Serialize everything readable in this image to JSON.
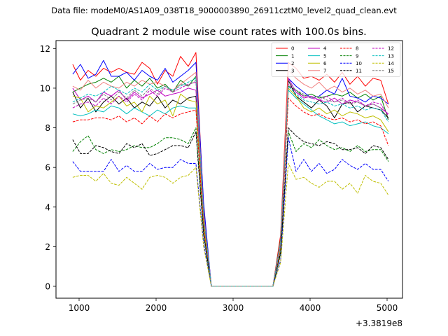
{
  "figure": {
    "suptitle": "Data file: modeM0/AS1A09_038T18_9000003890_26911cztM0_level2_quad_clean.evt"
  },
  "chart_data": {
    "type": "line",
    "title": "Quadrant 2 module wise count rates with 100.0s bins.",
    "xlabel": "",
    "ylabel": "",
    "x_offset_label": "+3.3819e8",
    "xlim": [
      700,
      5200
    ],
    "ylim": [
      -0.6,
      12.4
    ],
    "xticks": [
      1000,
      2000,
      3000,
      4000,
      5000
    ],
    "xtick_labels": [
      "1000",
      "2000",
      "3000",
      "4000",
      "5000"
    ],
    "yticks": [
      0,
      2,
      4,
      6,
      8,
      10,
      12
    ],
    "ytick_labels": [
      "0",
      "2",
      "4",
      "6",
      "8",
      "10",
      "12"
    ],
    "grid": false,
    "legend_position": "upper-right",
    "legend_columns": 4,
    "x": [
      917,
      1017,
      1117,
      1217,
      1317,
      1417,
      1517,
      1617,
      1717,
      1817,
      1917,
      2017,
      2117,
      2217,
      2317,
      2417,
      2517,
      2617,
      2717,
      2817,
      2917,
      3017,
      3117,
      3217,
      3317,
      3417,
      3517,
      3617,
      3717,
      3817,
      3917,
      4017,
      4117,
      4217,
      4317,
      4417,
      4517,
      4617,
      4717,
      4817,
      4917,
      5017
    ],
    "series": [
      {
        "name": "0",
        "color": "#ff0000",
        "dash": "solid",
        "values": [
          11.2,
          10.4,
          10.9,
          10.6,
          11.0,
          10.8,
          11.0,
          10.8,
          10.7,
          11.3,
          11.0,
          10.2,
          10.9,
          10.6,
          11.6,
          11.1,
          11.8,
          4.0,
          0,
          0,
          0,
          0,
          0,
          0,
          0,
          0,
          0,
          2.6,
          11.3,
          11.0,
          10.5,
          10.6,
          10.4,
          10.7,
          10.3,
          10.8,
          10.2,
          10.6,
          10.1,
          10.5,
          10.4,
          9.2
        ]
      },
      {
        "name": "1",
        "color": "#008000",
        "dash": "solid",
        "values": [
          9.8,
          10.0,
          10.2,
          10.3,
          10.5,
          10.3,
          10.6,
          10.0,
          10.4,
          10.1,
          10.5,
          10.0,
          10.2,
          9.8,
          10.4,
          10.1,
          10.6,
          3.6,
          0,
          0,
          0,
          0,
          0,
          0,
          0,
          0,
          0,
          2.4,
          10.1,
          9.9,
          9.6,
          9.7,
          9.5,
          9.6,
          9.7,
          9.6,
          9.8,
          9.5,
          9.7,
          9.4,
          9.6,
          8.4
        ]
      },
      {
        "name": "2",
        "color": "#0000ff",
        "dash": "solid",
        "values": [
          10.7,
          11.2,
          10.5,
          10.7,
          11.4,
          10.6,
          10.6,
          10.8,
          10.4,
          10.9,
          10.6,
          10.4,
          11.0,
          10.3,
          10.6,
          10.9,
          11.3,
          4.2,
          0,
          0,
          0,
          0,
          0,
          0,
          0,
          0,
          0,
          2.3,
          10.5,
          10.1,
          9.8,
          9.5,
          9.6,
          9.9,
          9.7,
          10.5,
          9.6,
          9.5,
          9.3,
          9.6,
          9.5,
          9.2
        ]
      },
      {
        "name": "3",
        "color": "#000000",
        "dash": "solid",
        "values": [
          9.8,
          9.0,
          9.5,
          8.8,
          9.3,
          9.6,
          9.2,
          9.5,
          9.0,
          9.3,
          9.1,
          9.6,
          9.0,
          9.4,
          9.2,
          9.5,
          9.6,
          3.2,
          0,
          0,
          0,
          0,
          0,
          0,
          0,
          0,
          0,
          2.0,
          10.4,
          9.6,
          9.3,
          9.0,
          9.4,
          9.1,
          8.5,
          9.2,
          9.3,
          8.8,
          9.1,
          9.0,
          8.9,
          8.5
        ]
      },
      {
        "name": "4",
        "color": "#bf00bf",
        "dash": "solid",
        "values": [
          10.0,
          9.4,
          9.6,
          9.3,
          9.8,
          9.6,
          9.9,
          9.4,
          9.8,
          9.5,
          9.7,
          9.9,
          9.6,
          9.7,
          9.8,
          10.0,
          9.9,
          3.4,
          0,
          0,
          0,
          0,
          0,
          0,
          0,
          0,
          0,
          2.2,
          10.5,
          9.8,
          9.5,
          9.6,
          9.4,
          9.3,
          9.5,
          9.2,
          9.4,
          9.3,
          9.1,
          9.2,
          9.0,
          8.7
        ]
      },
      {
        "name": "5",
        "color": "#00bfbf",
        "dash": "solid",
        "values": [
          8.7,
          8.6,
          8.7,
          8.9,
          8.8,
          9.1,
          9.0,
          8.7,
          9.0,
          8.8,
          8.6,
          8.9,
          8.7,
          9.0,
          9.1,
          9.0,
          9.0,
          3.0,
          0,
          0,
          0,
          0,
          0,
          0,
          0,
          0,
          0,
          1.9,
          9.9,
          9.5,
          9.2,
          8.9,
          8.6,
          8.4,
          8.2,
          8.3,
          8.1,
          8.2,
          8.3,
          8.1,
          8.0,
          7.7
        ]
      },
      {
        "name": "6",
        "color": "#bfbf00",
        "dash": "solid",
        "values": [
          9.6,
          9.5,
          8.8,
          9.1,
          9.0,
          9.3,
          9.6,
          9.1,
          9.3,
          8.8,
          9.6,
          9.2,
          9.4,
          8.6,
          9.7,
          9.4,
          9.3,
          3.1,
          0,
          0,
          0,
          0,
          0,
          0,
          0,
          0,
          0,
          2.0,
          10.0,
          9.6,
          9.0,
          8.8,
          9.0,
          8.7,
          8.9,
          8.6,
          8.8,
          8.7,
          8.5,
          8.6,
          8.4,
          7.8
        ]
      },
      {
        "name": "7",
        "color": "#f08080",
        "dash": "solid",
        "values": [
          10.1,
          9.9,
          10.4,
          10.0,
          10.3,
          10.1,
          10.0,
          10.3,
          10.1,
          10.4,
          10.2,
          10.3,
          10.1,
          9.9,
          10.2,
          10.5,
          10.8,
          3.7,
          0,
          0,
          0,
          0,
          0,
          0,
          0,
          0,
          0,
          2.3,
          10.9,
          10.5,
          10.2,
          10.0,
          10.3,
          9.9,
          10.1,
          9.8,
          10.0,
          9.7,
          9.9,
          9.6,
          9.7,
          9.0
        ]
      },
      {
        "name": "8",
        "color": "#ff0000",
        "dash": "dashed",
        "values": [
          8.3,
          8.4,
          8.4,
          8.5,
          8.5,
          8.4,
          8.6,
          8.3,
          8.5,
          8.2,
          8.6,
          8.3,
          8.7,
          8.5,
          8.7,
          8.8,
          8.9,
          2.9,
          0,
          0,
          0,
          0,
          0,
          0,
          0,
          0,
          0,
          1.8,
          9.5,
          9.1,
          8.8,
          8.6,
          8.7,
          8.5,
          8.4,
          8.5,
          8.3,
          8.4,
          8.2,
          8.3,
          8.1,
          7.1
        ]
      },
      {
        "name": "9",
        "color": "#008000",
        "dash": "dashed",
        "values": [
          6.8,
          7.3,
          7.6,
          6.9,
          6.7,
          6.9,
          6.8,
          6.9,
          7.1,
          7.0,
          7.0,
          7.2,
          7.5,
          7.5,
          7.4,
          7.2,
          8.0,
          2.7,
          0,
          0,
          0,
          0,
          0,
          0,
          0,
          0,
          0,
          1.6,
          7.8,
          6.8,
          7.2,
          7.0,
          7.4,
          7.1,
          6.9,
          7.0,
          6.8,
          7.1,
          6.8,
          6.9,
          6.9,
          6.3
        ]
      },
      {
        "name": "10",
        "color": "#0000ff",
        "dash": "dashed",
        "values": [
          6.3,
          5.8,
          5.8,
          5.8,
          5.8,
          6.4,
          5.8,
          6.1,
          5.8,
          5.8,
          6.2,
          5.9,
          6.0,
          6.0,
          6.4,
          6.2,
          6.2,
          2.2,
          0,
          0,
          0,
          0,
          0,
          0,
          0,
          0,
          0,
          1.3,
          7.5,
          5.8,
          6.4,
          5.8,
          6.2,
          5.7,
          5.9,
          6.4,
          6.1,
          5.9,
          6.2,
          5.9,
          5.9,
          5.3
        ]
      },
      {
        "name": "11",
        "color": "#000000",
        "dash": "dashed",
        "values": [
          7.4,
          6.7,
          6.7,
          7.1,
          7.0,
          6.8,
          6.7,
          7.2,
          7.0,
          7.2,
          6.6,
          6.7,
          6.9,
          7.1,
          7.1,
          7.0,
          7.8,
          2.6,
          0,
          0,
          0,
          0,
          0,
          0,
          0,
          0,
          0,
          1.7,
          8.0,
          7.6,
          7.3,
          7.2,
          7.1,
          7.3,
          7.2,
          6.9,
          6.9,
          7.0,
          6.7,
          7.1,
          7.0,
          6.4
        ]
      },
      {
        "name": "12",
        "color": "#bf00bf",
        "dash": "dashed",
        "values": [
          9.0,
          9.2,
          9.3,
          9.1,
          9.5,
          9.2,
          9.6,
          9.3,
          9.7,
          9.4,
          9.9,
          9.6,
          10.0,
          9.8,
          10.0,
          10.2,
          10.3,
          3.5,
          0,
          0,
          0,
          0,
          0,
          0,
          0,
          0,
          0,
          2.1,
          10.2,
          9.8,
          9.6,
          9.5,
          9.4,
          9.6,
          9.3,
          9.5,
          9.2,
          9.4,
          9.1,
          9.3,
          9.2,
          8.6
        ]
      },
      {
        "name": "13",
        "color": "#00bfbf",
        "dash": "dashed",
        "values": [
          9.3,
          9.5,
          9.7,
          9.6,
          9.8,
          10.1,
          9.9,
          9.7,
          10.0,
          9.8,
          10.2,
          9.9,
          10.1,
          9.9,
          10.1,
          10.3,
          10.5,
          3.6,
          0,
          0,
          0,
          0,
          0,
          0,
          0,
          0,
          0,
          2.2,
          10.1,
          9.7,
          9.4,
          9.3,
          9.2,
          9.3,
          9.1,
          9.2,
          9.0,
          9.1,
          8.9,
          9.0,
          8.9,
          8.3
        ]
      },
      {
        "name": "14",
        "color": "#bfbf00",
        "dash": "dashed",
        "values": [
          5.5,
          5.6,
          5.6,
          5.3,
          5.7,
          5.2,
          5.1,
          5.5,
          5.2,
          4.9,
          5.5,
          5.6,
          5.5,
          5.2,
          5.5,
          5.6,
          6.0,
          2.0,
          0,
          0,
          0,
          0,
          0,
          0,
          0,
          0,
          0,
          1.2,
          6.2,
          5.4,
          5.5,
          5.2,
          5.0,
          5.3,
          5.3,
          4.9,
          5.2,
          4.7,
          5.6,
          5.3,
          5.2,
          4.6
        ]
      },
      {
        "name": "15",
        "color": "#808080",
        "dash": "dashed",
        "values": [
          9.2,
          9.4,
          9.5,
          9.3,
          9.7,
          9.4,
          9.8,
          9.5,
          9.9,
          9.6,
          10.0,
          9.7,
          10.1,
          9.8,
          10.2,
          10.1,
          10.4,
          3.5,
          0,
          0,
          0,
          0,
          0,
          0,
          0,
          0,
          0,
          2.1,
          10.3,
          9.9,
          9.7,
          9.5,
          9.6,
          9.4,
          9.3,
          9.4,
          9.2,
          9.3,
          9.1,
          9.2,
          9.0,
          8.4
        ]
      }
    ]
  }
}
